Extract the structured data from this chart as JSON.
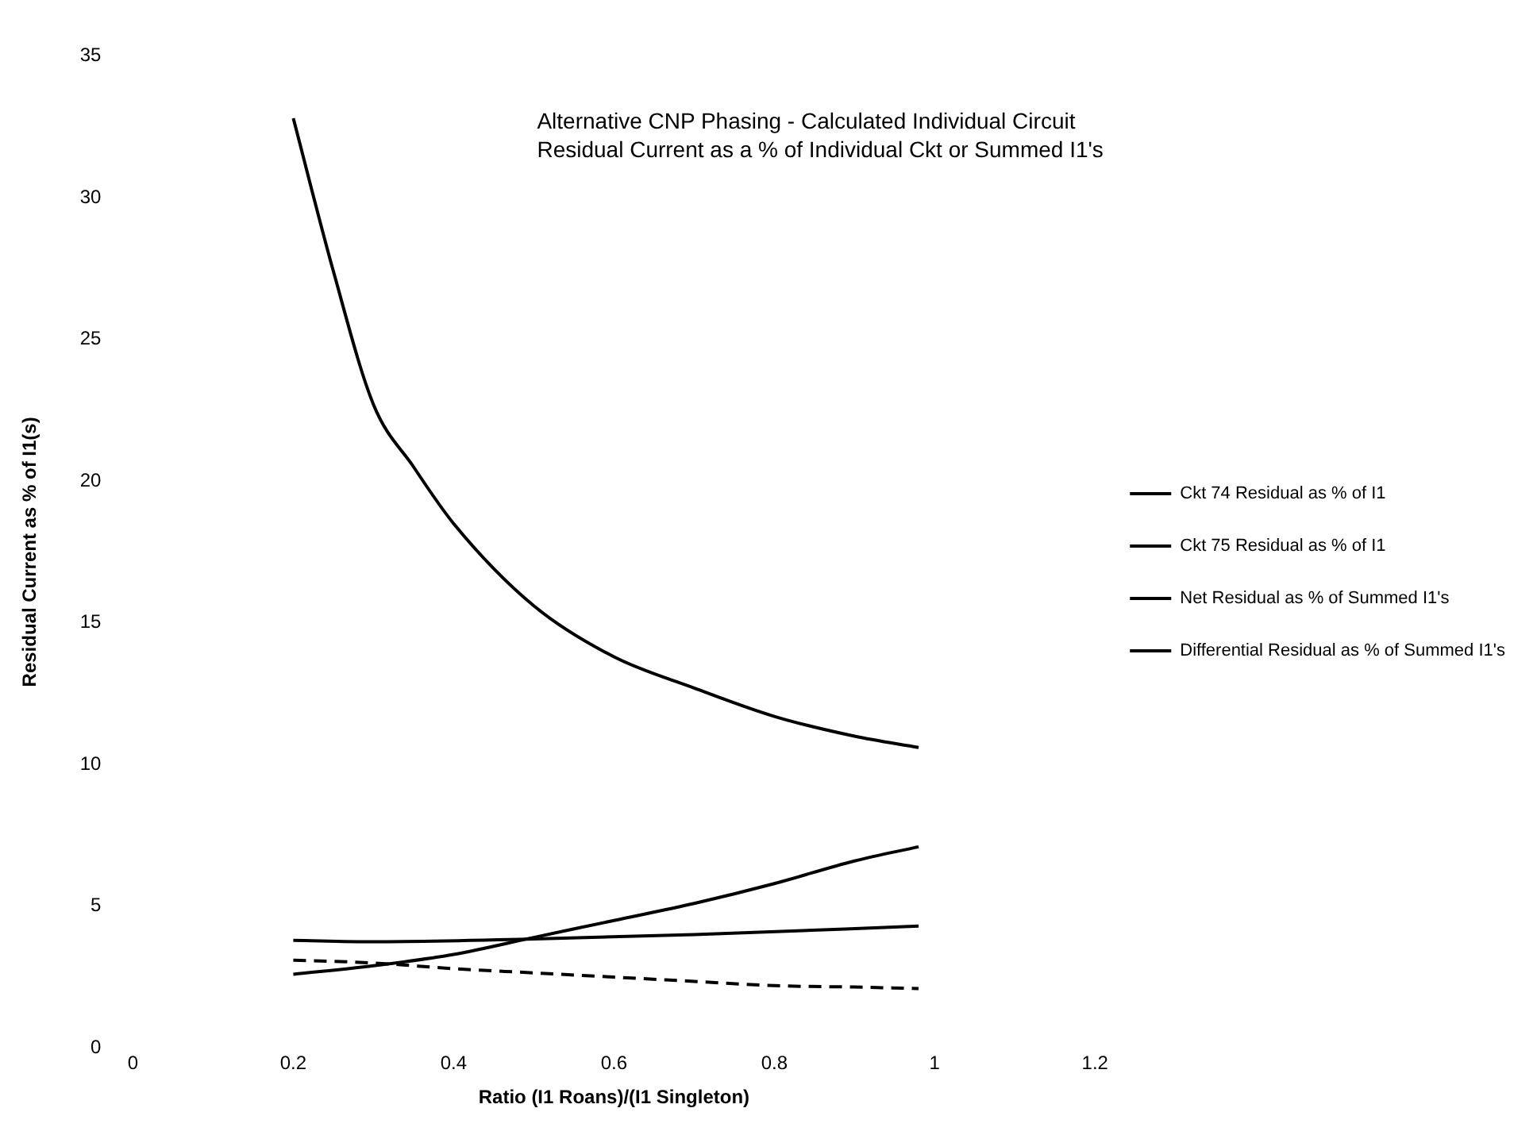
{
  "chart_data": {
    "type": "line",
    "title": "Alternative CNP Phasing - Calculated Individual Circuit Residual Current as a % of Individual Ckt or Summed I1's",
    "xlabel": "Ratio (I1 Roans)/(I1 Singleton)",
    "ylabel": "Residual Current as % of I1(s)",
    "xlim": [
      0,
      1.2
    ],
    "xticks": [
      0,
      0.2,
      0.4,
      0.6,
      0.8,
      1,
      1.2
    ],
    "ylim": [
      0,
      35
    ],
    "yticks": [
      0,
      5,
      10,
      15,
      20,
      25,
      30,
      35
    ],
    "grid": false,
    "legend": "right",
    "marker": "none",
    "series": [
      {
        "name": "Ckt 74 Residual as % of I1",
        "color": "#000000",
        "x": [
          0.2,
          0.25,
          0.3,
          0.35,
          0.4,
          0.5,
          0.6,
          0.7,
          0.8,
          0.9,
          0.98
        ],
        "values": [
          32.8,
          27.4,
          22.7,
          20.5,
          18.5,
          15.6,
          13.8,
          12.7,
          11.7,
          11.0,
          10.6
        ]
      },
      {
        "name": "Ckt 75 Residual as % of I1",
        "color": "#000000",
        "x": [
          0.2,
          0.3,
          0.4,
          0.5,
          0.6,
          0.7,
          0.8,
          0.9,
          0.98
        ],
        "values": [
          2.6,
          2.9,
          3.3,
          3.9,
          4.5,
          5.1,
          5.8,
          6.6,
          7.1
        ]
      },
      {
        "name": "Net Residual as % of Summed I1's",
        "color": "#000000",
        "line_style": "dashed",
        "x": [
          0.2,
          0.3,
          0.4,
          0.5,
          0.6,
          0.7,
          0.8,
          0.9,
          0.98
        ],
        "values": [
          3.1,
          3.0,
          2.8,
          2.65,
          2.5,
          2.35,
          2.2,
          2.15,
          2.1
        ]
      },
      {
        "name": "Differential Residual as % of Summed I1's",
        "color": "#000000",
        "x": [
          0.2,
          0.3,
          0.5,
          0.7,
          0.98
        ],
        "values": [
          3.8,
          3.75,
          3.85,
          4.0,
          4.3
        ]
      }
    ]
  }
}
